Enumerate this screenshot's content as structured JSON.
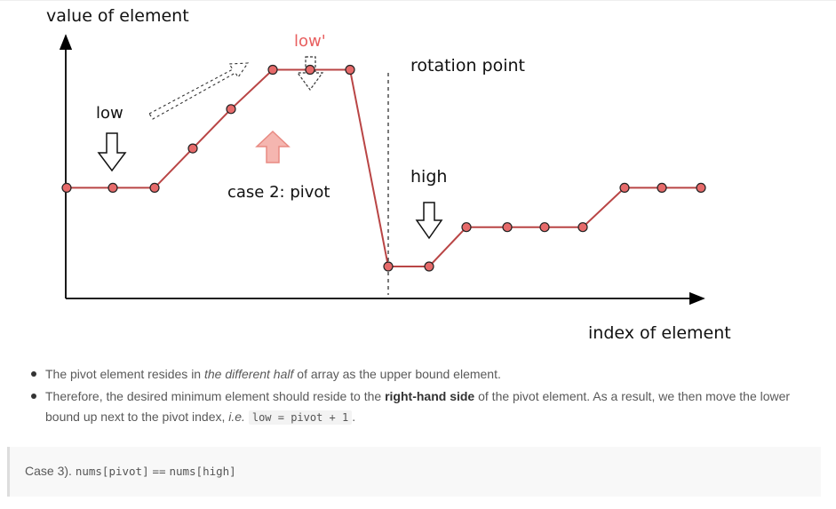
{
  "diagram": {
    "y_axis_label": "value of element",
    "x_axis_label": "index of element",
    "labels": {
      "low": "low",
      "low_prime": "low'",
      "rotation_point": "rotation point",
      "high": "high",
      "case": "case 2: pivot"
    },
    "series": {
      "line_color": "#b94545",
      "point_fill": "#e66a6a",
      "values": [
        2,
        2,
        2,
        3,
        4,
        5,
        5,
        5,
        0,
        0,
        1,
        1,
        1,
        1,
        2,
        2,
        2
      ]
    },
    "colors": {
      "low_prime": "#e85f5f",
      "pivot_arrow": "#f5b6b0",
      "pivot_arrow_stroke": "#e88a82"
    }
  },
  "text": {
    "bullet1": {
      "a": "The pivot element resides in ",
      "b": "the different half",
      "c": " of array as the upper bound element."
    },
    "bullet2": {
      "a": "Therefore, the desired minimum element should reside to the ",
      "b": "right-hand side",
      "c": " of the pivot element. As a result, we then move the lower bound up next to the pivot index, ",
      "d": "i.e.",
      "e": " ",
      "code": "low = pivot + 1",
      "f": "."
    },
    "case3": {
      "prefix": "Case 3).",
      "code1": "nums[pivot]",
      "op": "==",
      "code2": "nums[high]"
    }
  }
}
